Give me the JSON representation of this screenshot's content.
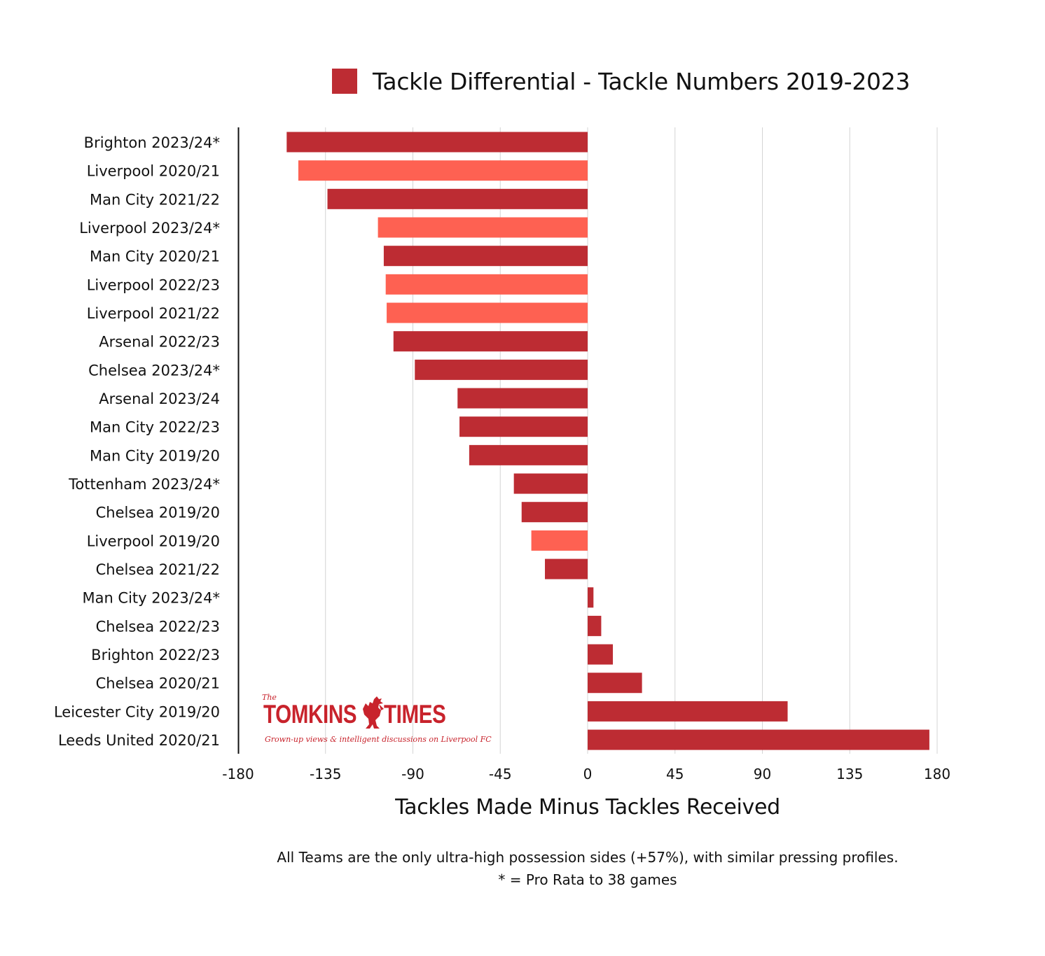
{
  "legend": {
    "label": "Tackle Differential - Tackle Numbers 2019-2023",
    "color": "#bd2c33"
  },
  "colors": {
    "default_bar": "#bd2c33",
    "liverpool_bar": "#fe6152",
    "grid": "#d4d4d4",
    "axis": "#111111"
  },
  "chart_data": {
    "type": "bar",
    "orientation": "horizontal",
    "title": "",
    "xlabel": "Tackles Made Minus Tackles Received",
    "ylabel": "",
    "xlim": [
      -180,
      180
    ],
    "xticks": [
      -180,
      -135,
      -90,
      -45,
      0,
      45,
      90,
      135,
      180
    ],
    "grid": true,
    "legend_position": "top",
    "categories": [
      "Brighton 2023/24*",
      "Liverpool 2020/21",
      "Man City 2021/22",
      "Liverpool 2023/24*",
      "Man City 2020/21",
      "Liverpool 2022/23",
      "Liverpool 2021/22",
      "Arsenal 2022/23",
      "Chelsea 2023/24*",
      "Arsenal 2023/24",
      "Man City 2022/23",
      "Man City 2019/20",
      "Tottenham 2023/24*",
      "Chelsea 2019/20",
      "Liverpool 2019/20",
      "Chelsea 2021/22",
      "Man City 2023/24*",
      "Chelsea 2022/23",
      "Brighton 2022/23",
      "Chelsea 2020/21",
      "Leicester City 2019/20",
      "Leeds United 2020/21"
    ],
    "series": [
      {
        "name": "Tackle Differential - Tackle Numbers 2019-2023",
        "values": [
          -155,
          -149,
          -134,
          -108,
          -105,
          -104,
          -103.5,
          -100,
          -89,
          -67,
          -66,
          -61,
          -38,
          -34,
          -29,
          -22,
          3,
          7,
          13,
          28,
          103,
          176
        ]
      }
    ],
    "highlight": [
      false,
      true,
      false,
      true,
      false,
      true,
      true,
      false,
      false,
      false,
      false,
      false,
      false,
      false,
      true,
      false,
      false,
      false,
      false,
      false,
      false,
      false
    ]
  },
  "footnote": {
    "line1": "All Teams are the only ultra-high possession sides (+57%), with similar pressing profiles.",
    "line2": "* = Pro Rata to 38 games"
  },
  "logo": {
    "small": "The",
    "left": "TOMKINS",
    "right": "TIMES",
    "tagline": "Grown-up views & intelligent discussions on Liverpool FC",
    "icon": "liver-bird-icon"
  }
}
